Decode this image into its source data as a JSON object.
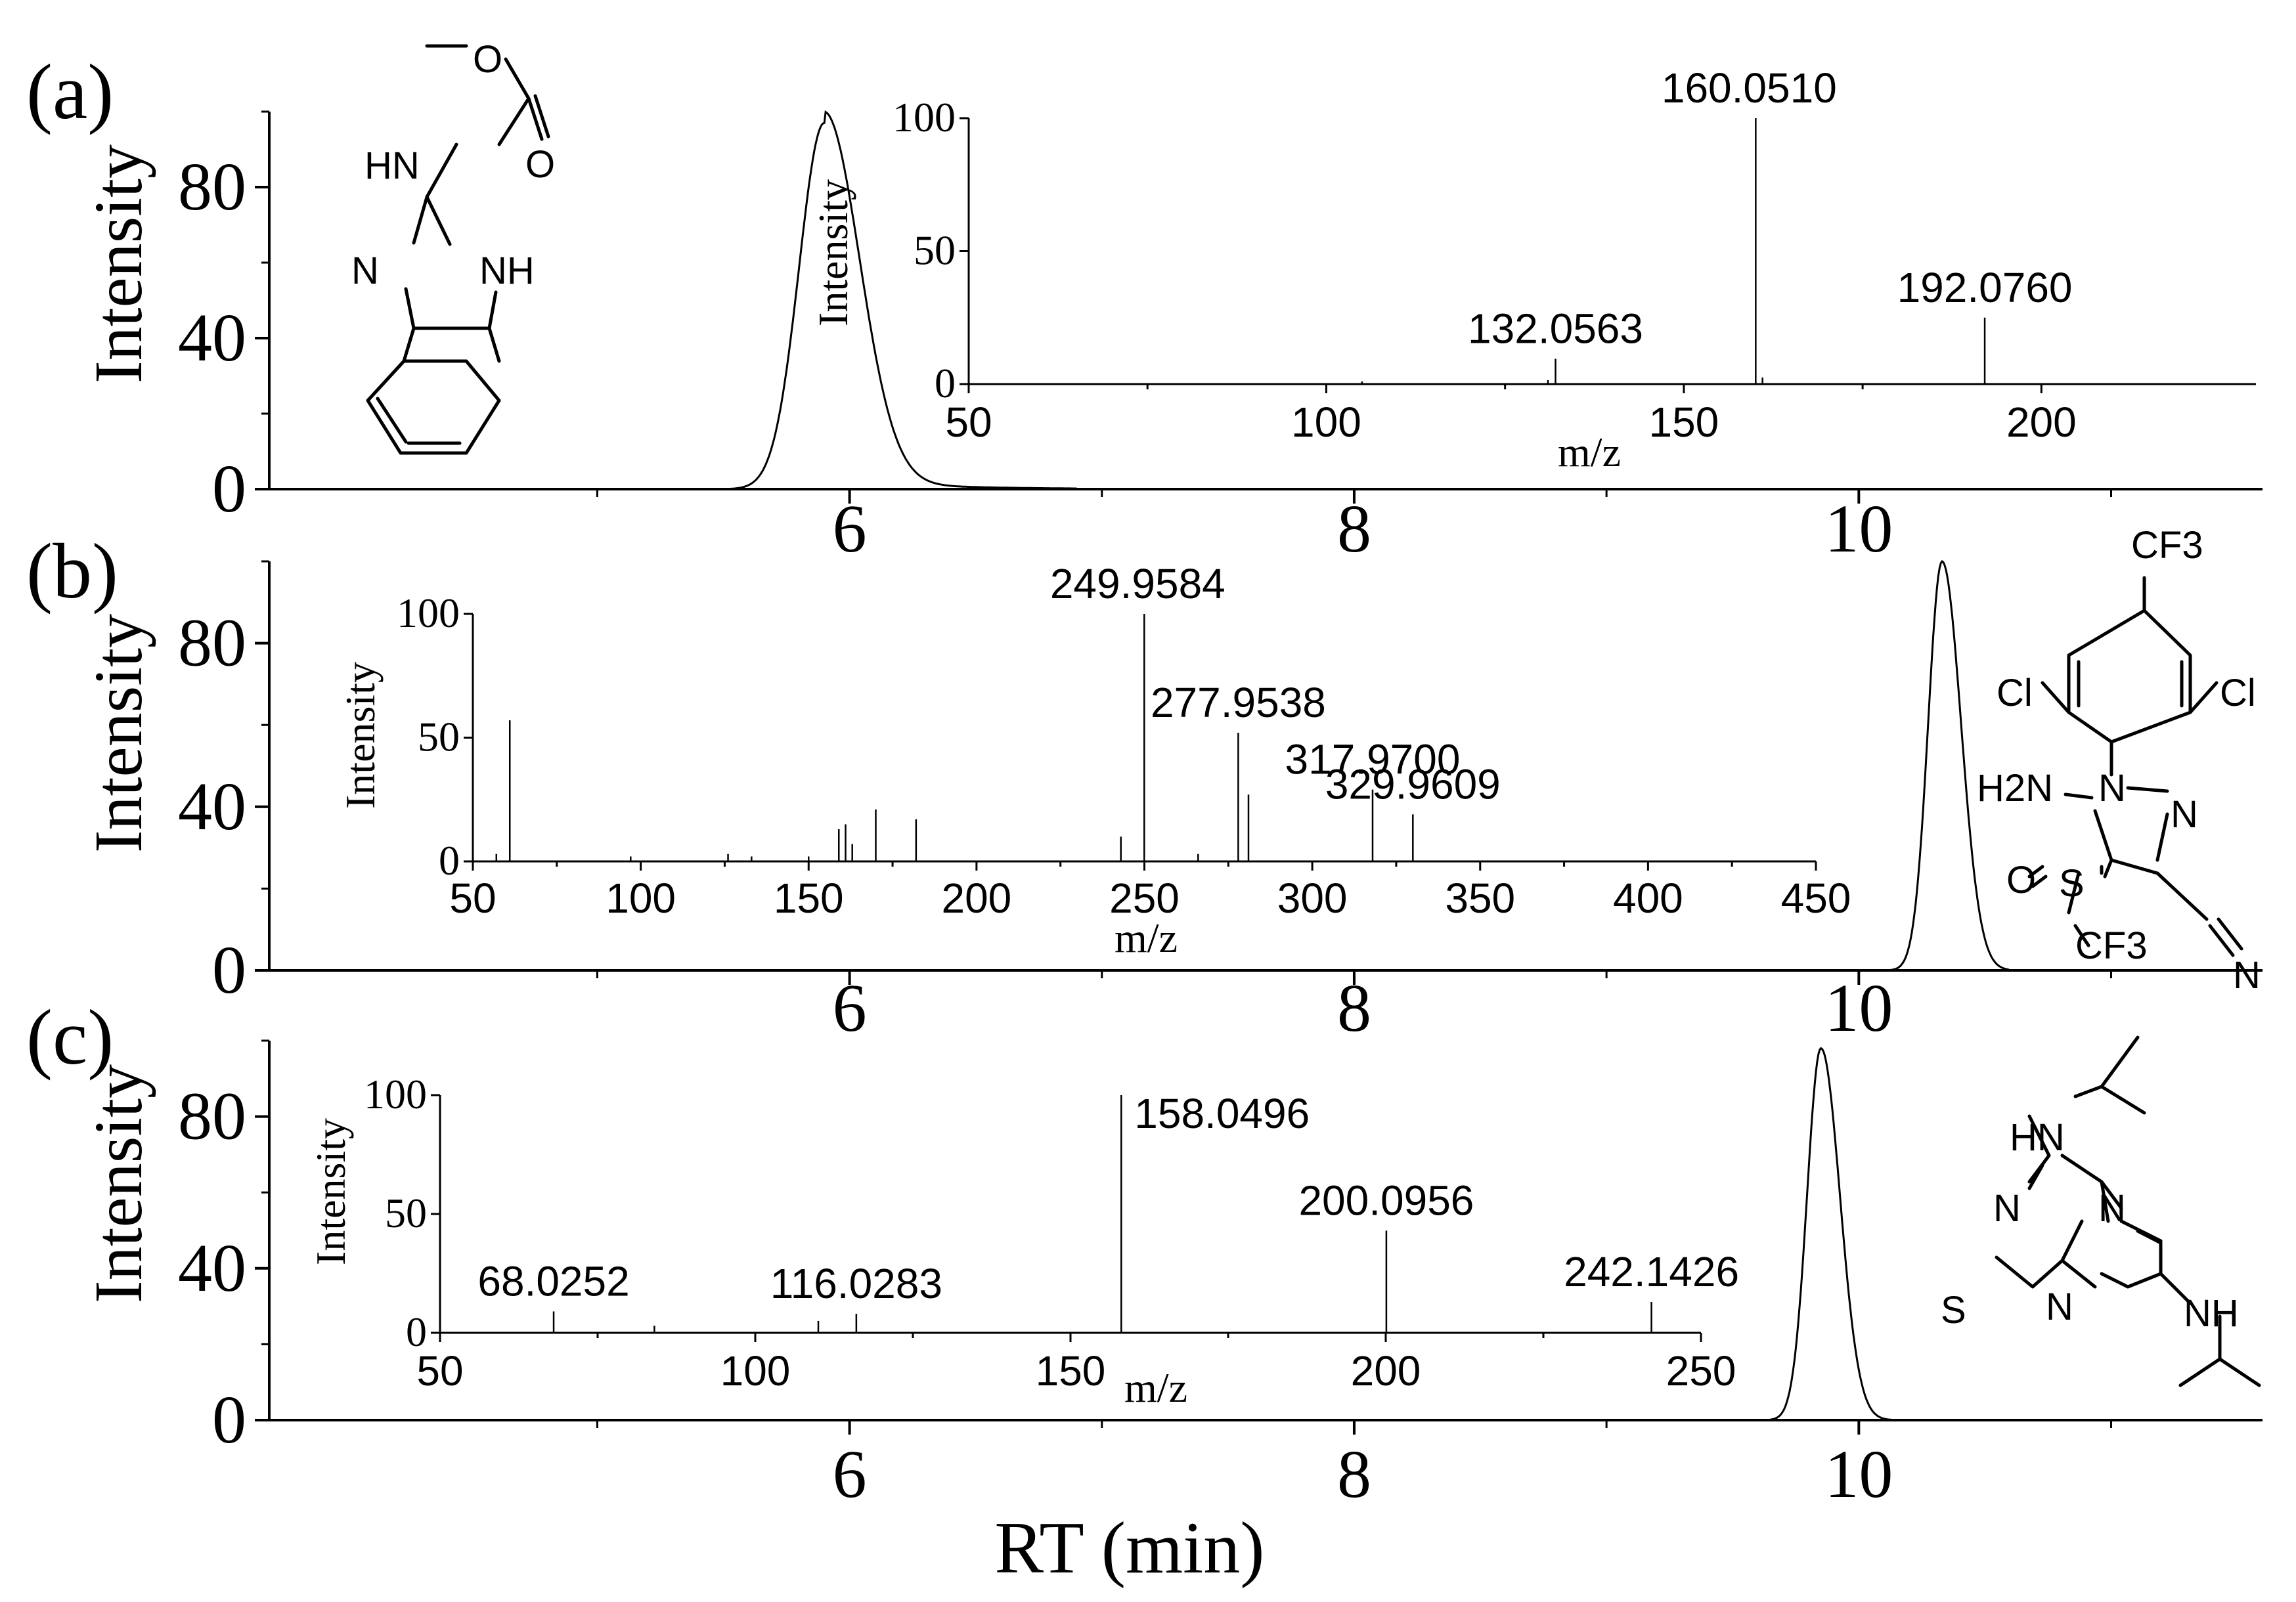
{
  "xlabel": "RT (min)",
  "chart_data": [
    {
      "type": "line",
      "panel_label": "(a)",
      "ylabel": "Intensity",
      "xlim": [
        3.7,
        11.6
      ],
      "ylim": [
        0,
        100
      ],
      "xticks": [
        "6",
        "8",
        "10"
      ],
      "yticks": [
        "0",
        "40",
        "80"
      ],
      "peak": {
        "center": 5.9,
        "height": 97,
        "end": 6.9
      },
      "structure": [
        "O",
        "HN",
        "O",
        "N",
        "NH"
      ],
      "inset": {
        "type": "bar",
        "xlabel": "m/z",
        "ylabel": "Intensity",
        "xlim": [
          50,
          230
        ],
        "ylim": [
          0,
          100
        ],
        "xticks": [
          "50",
          "100",
          "150",
          "200"
        ],
        "yticks": [
          "0",
          "50",
          "100"
        ],
        "peaks": [
          {
            "mz": 105.0,
            "intensity": 1.0,
            "label": ""
          },
          {
            "mz": 131.0,
            "intensity": 1.5,
            "label": ""
          },
          {
            "mz": 132.0563,
            "intensity": 9.5,
            "label": "132.0563"
          },
          {
            "mz": 160.051,
            "intensity": 100,
            "label": "160.0510"
          },
          {
            "mz": 161.0,
            "intensity": 2.5,
            "label": ""
          },
          {
            "mz": 192.076,
            "intensity": 25,
            "label": "192.0760"
          }
        ]
      }
    },
    {
      "type": "line",
      "panel_label": "(b)",
      "ylabel": "Intensity",
      "xlim": [
        3.7,
        11.6
      ],
      "ylim": [
        0,
        100
      ],
      "xticks": [
        "6",
        "8",
        "10"
      ],
      "yticks": [
        "0",
        "40",
        "80"
      ],
      "peak": {
        "center": 10.33,
        "height": 100,
        "end": 10.6
      },
      "structure": [
        "CF3",
        "Cl",
        "Cl",
        "H2N",
        "N",
        "N",
        "O",
        "S",
        "CF3",
        "N"
      ],
      "inset": {
        "type": "bar",
        "xlabel": "m/z",
        "ylabel": "Intensity",
        "xlim": [
          50,
          450
        ],
        "ylim": [
          0,
          100
        ],
        "xticks": [
          "50",
          "100",
          "150",
          "200",
          "250",
          "300",
          "350",
          "400",
          "450"
        ],
        "yticks": [
          "0",
          "50",
          "100"
        ],
        "peaks": [
          {
            "mz": 57.0,
            "intensity": 3,
            "label": ""
          },
          {
            "mz": 61.0,
            "intensity": 57,
            "label": ""
          },
          {
            "mz": 97.0,
            "intensity": 2,
            "label": ""
          },
          {
            "mz": 126.0,
            "intensity": 3,
            "label": ""
          },
          {
            "mz": 133.0,
            "intensity": 2,
            "label": ""
          },
          {
            "mz": 150.0,
            "intensity": 2,
            "label": ""
          },
          {
            "mz": 159.0,
            "intensity": 13,
            "label": ""
          },
          {
            "mz": 161.0,
            "intensity": 15,
            "label": ""
          },
          {
            "mz": 163.0,
            "intensity": 7,
            "label": ""
          },
          {
            "mz": 170.0,
            "intensity": 21,
            "label": ""
          },
          {
            "mz": 182.0,
            "intensity": 17,
            "label": ""
          },
          {
            "mz": 243.0,
            "intensity": 10,
            "label": ""
          },
          {
            "mz": 249.9584,
            "intensity": 100,
            "label": "249.9584"
          },
          {
            "mz": 266.0,
            "intensity": 3,
            "label": ""
          },
          {
            "mz": 277.9538,
            "intensity": 52,
            "label": "277.9538"
          },
          {
            "mz": 281.0,
            "intensity": 27,
            "label": ""
          },
          {
            "mz": 317.97,
            "intensity": 29,
            "label": "317.9700"
          },
          {
            "mz": 329.9609,
            "intensity": 19,
            "label": "329.9609"
          }
        ]
      }
    },
    {
      "type": "line",
      "panel_label": "(c)",
      "ylabel": "Intensity",
      "xlim": [
        3.7,
        11.6
      ],
      "ylim": [
        0,
        100
      ],
      "xticks": [
        "6",
        "8",
        "10"
      ],
      "yticks": [
        "0",
        "40",
        "80"
      ],
      "peak": {
        "center": 9.85,
        "height": 98,
        "end": 10.3
      },
      "structure": [
        "HN",
        "N",
        "N",
        "S",
        "N",
        "NH"
      ],
      "inset": {
        "type": "bar",
        "xlabel": "m/z",
        "ylabel": "Intensity",
        "xlim": [
          50,
          250
        ],
        "ylim": [
          0,
          100
        ],
        "xticks": [
          "50",
          "100",
          "150",
          "200",
          "250"
        ],
        "yticks": [
          "0",
          "50",
          "100"
        ],
        "peaks": [
          {
            "mz": 68.0252,
            "intensity": 9,
            "label": "68.0252"
          },
          {
            "mz": 84.0,
            "intensity": 3,
            "label": ""
          },
          {
            "mz": 110.0,
            "intensity": 5,
            "label": ""
          },
          {
            "mz": 116.0283,
            "intensity": 8,
            "label": "116.0283"
          },
          {
            "mz": 158.0496,
            "intensity": 100,
            "label": "158.0496"
          },
          {
            "mz": 200.0956,
            "intensity": 43,
            "label": "200.0956"
          },
          {
            "mz": 242.1426,
            "intensity": 13,
            "label": "242.1426"
          }
        ]
      }
    }
  ]
}
